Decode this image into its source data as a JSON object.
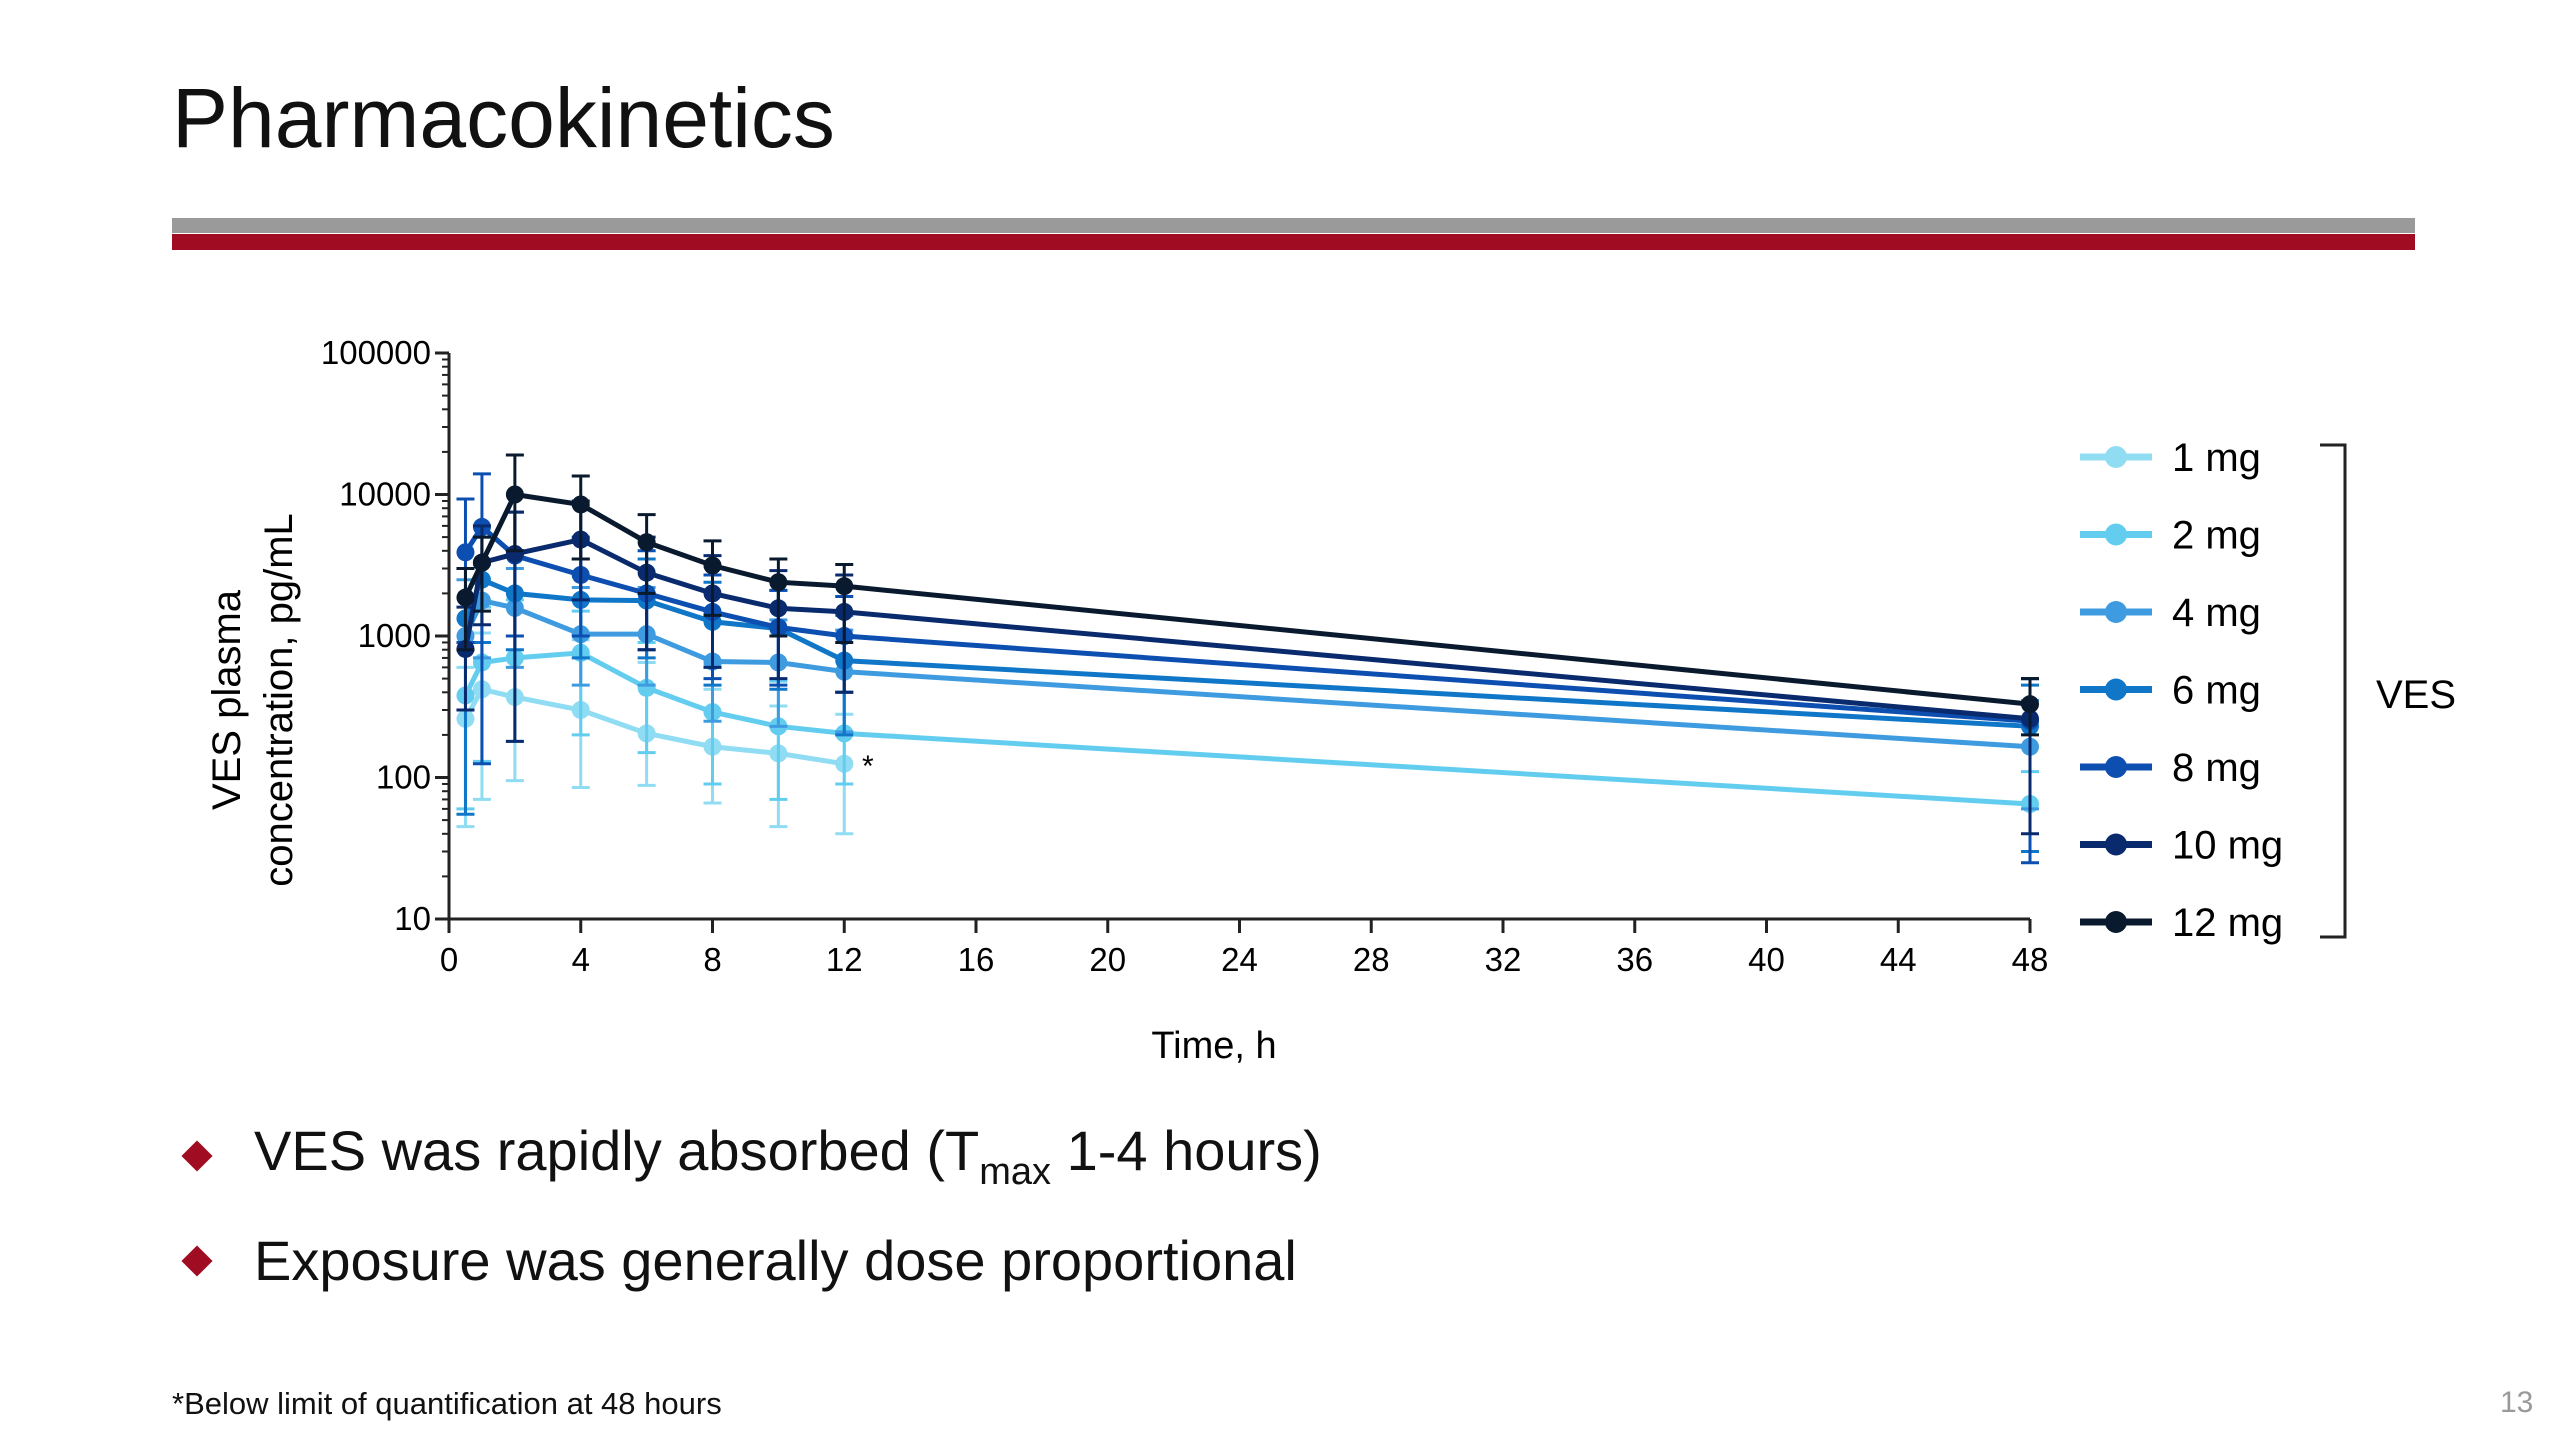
{
  "slide": {
    "title": "Pharmacokinetics",
    "bullets": [
      {
        "pre": "VES was rapidly absorbed (T",
        "sub": "max",
        "post": " 1-4 hours)"
      },
      {
        "pre": "Exposure was generally dose proportional"
      }
    ],
    "footnote": "*Below limit of quantification at 48 hours",
    "page_number": "13",
    "colors": {
      "accent_red": "#a00d22",
      "rule_gray": "#9a9a9a"
    }
  },
  "chart_data": {
    "type": "line",
    "title": "",
    "xlabel": "Time, h",
    "ylabel_line1": "VES plasma",
    "ylabel_line2": "concentration, pg/mL",
    "yscale": "log",
    "ylim": [
      10,
      100000
    ],
    "xlim": [
      0,
      48
    ],
    "x_ticks": [
      "0",
      "4",
      "8",
      "12",
      "16",
      "20",
      "24",
      "28",
      "32",
      "36",
      "40",
      "44",
      "48"
    ],
    "y_ticks": [
      "10",
      "100",
      "1000",
      "10000",
      "100000"
    ],
    "x": [
      0.5,
      1,
      2,
      4,
      6,
      8,
      10,
      12,
      48
    ],
    "legend_group_label": "VES",
    "legend_position": "right",
    "annotation": "*",
    "series": [
      {
        "name": "1 mg",
        "color": "#8fdcf3",
        "values": [
          260,
          420,
          370,
          300,
          205,
          165,
          148,
          125,
          null
        ],
        "err_upper": [
          600,
          1050,
          1000,
          940,
          650,
          420,
          320,
          280,
          null
        ],
        "err_lower": [
          45,
          70,
          95,
          85,
          88,
          66,
          45,
          40,
          null
        ]
      },
      {
        "name": "2 mg",
        "color": "#63cdf0",
        "values": [
          380,
          650,
          700,
          760,
          430,
          290,
          230,
          205,
          65
        ],
        "err_upper": [
          900,
          1600,
          1800,
          1500,
          900,
          620,
          480,
          400,
          110
        ],
        "err_lower": [
          60,
          130,
          180,
          200,
          150,
          90,
          70,
          90,
          30
        ]
      },
      {
        "name": "4 mg",
        "color": "#3f9be0",
        "values": [
          1000,
          1780,
          1580,
          1030,
          1030,
          660,
          650,
          560,
          165
        ],
        "err_upper": [
          2500,
          3200,
          3000,
          2200,
          2200,
          1400,
          1300,
          1100,
          350
        ],
        "err_lower": [
          300,
          700,
          600,
          450,
          450,
          250,
          230,
          210,
          60
        ]
      },
      {
        "name": "6 mg",
        "color": "#0f76c8",
        "values": [
          1330,
          2500,
          2000,
          1800,
          1780,
          1260,
          1130,
          670,
          230
        ],
        "err_upper": [
          3000,
          5000,
          4000,
          3500,
          3500,
          2400,
          2100,
          1400,
          450
        ],
        "err_lower": [
          55,
          900,
          800,
          700,
          700,
          450,
          420,
          200,
          30
        ]
      },
      {
        "name": "8 mg",
        "color": "#0c4fb0",
        "values": [
          3900,
          5900,
          3700,
          2700,
          2000,
          1480,
          1150,
          1000,
          250
        ],
        "err_upper": [
          9300,
          14000,
          7500,
          5000,
          4000,
          2700,
          2100,
          1900,
          500
        ],
        "err_lower": [
          900,
          125,
          1000,
          1000,
          800,
          500,
          450,
          400,
          25
        ]
      },
      {
        "name": "10 mg",
        "color": "#0a2a6e",
        "values": [
          810,
          3300,
          3800,
          4800,
          2800,
          2000,
          1570,
          1480,
          260
        ],
        "err_upper": [
          1600,
          6000,
          7500,
          9000,
          5000,
          3700,
          2900,
          2700,
          500
        ],
        "err_lower": [
          300,
          1200,
          180,
          1800,
          800,
          600,
          500,
          400,
          40
        ]
      },
      {
        "name": "12 mg",
        "color": "#0a1a2e",
        "values": [
          1870,
          3300,
          10000,
          8500,
          4600,
          3150,
          2400,
          2250,
          330
        ],
        "err_upper": [
          3000,
          5000,
          19000,
          13500,
          7200,
          4700,
          3500,
          3200,
          500
        ],
        "err_lower": [
          800,
          1500,
          4000,
          3500,
          2000,
          1400,
          1000,
          900,
          200
        ]
      }
    ]
  }
}
